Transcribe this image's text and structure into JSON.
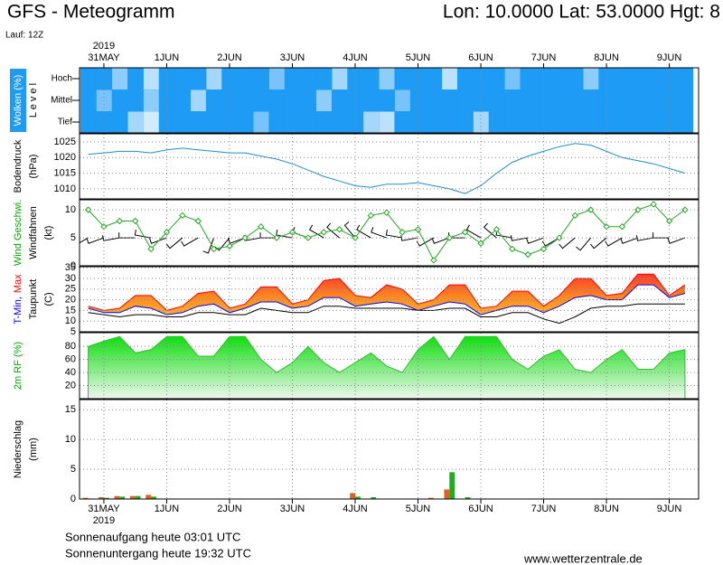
{
  "header": {
    "title": "GFS - Meteogramm",
    "location": "Lon: 10.0000 Lat: 53.0000 Hgt: 8",
    "run": "Lauf: 12Z"
  },
  "footer": {
    "sunrise": "Sonnenaufgang heute 03:01 UTC",
    "sunset": "Sonnenuntergang heute 19:32 UTC",
    "source": "www.wetterzentrale.de"
  },
  "time_axis": {
    "year": "2019",
    "xlim": [
      -9.3,
      227.2
    ],
    "xticks": [
      {
        "value": 0,
        "label": "31MAY"
      },
      {
        "value": 24,
        "label": "1JUN"
      },
      {
        "value": 48,
        "label": "2JUN"
      },
      {
        "value": 72,
        "label": "3JUN"
      },
      {
        "value": 96,
        "label": "4JUN"
      },
      {
        "value": 120,
        "label": "5JUN"
      },
      {
        "value": 144,
        "label": "6JUN"
      },
      {
        "value": 168,
        "label": "7JUN"
      },
      {
        "value": 192,
        "label": "8JUN"
      },
      {
        "value": 216,
        "label": "9JUN"
      }
    ],
    "x": [
      -6,
      0,
      6,
      12,
      18,
      24,
      30,
      36,
      42,
      48,
      54,
      60,
      66,
      72,
      78,
      84,
      90,
      96,
      102,
      108,
      114,
      120,
      126,
      132,
      138,
      144,
      150,
      156,
      162,
      168,
      174,
      180,
      186,
      192,
      198,
      204,
      210,
      216,
      222
    ],
    "grid": true
  },
  "chart_data": [
    {
      "type": "cloud",
      "color": "#1e9bf5",
      "label_background": "#1e9bf5",
      "ylabel": [
        [
          {
            "text": "Wolken (%)",
            "color": "#ffffff"
          }
        ],
        [
          {
            "text": "L e v e l",
            "color": "#000000"
          }
        ]
      ],
      "levels": [
        {
          "name": "Hoch",
          "values": [
            100,
            100,
            50,
            100,
            30,
            100,
            100,
            100,
            40,
            100,
            100,
            100,
            60,
            100,
            100,
            100,
            40,
            100,
            100,
            50,
            100,
            100,
            100,
            30,
            100,
            100,
            100,
            60,
            100,
            100,
            100,
            100,
            50,
            100,
            100,
            100,
            100,
            100,
            100
          ]
        },
        {
          "name": "Mittel",
          "values": [
            100,
            60,
            100,
            100,
            50,
            100,
            100,
            40,
            100,
            100,
            100,
            100,
            100,
            100,
            100,
            50,
            100,
            100,
            100,
            100,
            60,
            100,
            100,
            100,
            100,
            100,
            100,
            100,
            100,
            100,
            100,
            100,
            100,
            100,
            100,
            100,
            100,
            100,
            100
          ]
        },
        {
          "name": "Tief",
          "values": [
            100,
            100,
            100,
            40,
            20,
            100,
            100,
            100,
            100,
            100,
            100,
            60,
            100,
            100,
            100,
            100,
            100,
            100,
            40,
            30,
            100,
            100,
            100,
            100,
            100,
            40,
            100,
            100,
            100,
            100,
            100,
            100,
            100,
            100,
            100,
            100,
            100,
            100,
            100
          ]
        }
      ]
    },
    {
      "type": "line",
      "ylabel": [
        [
          {
            "text": "Bodendruck",
            "color": "#000000"
          }
        ],
        [
          {
            "text": "(hPa)",
            "color": "#000000"
          }
        ]
      ],
      "ylim": [
        1006.8,
        1027.6
      ],
      "yticks": [
        1010,
        1015,
        1020,
        1025
      ],
      "series": [
        {
          "color": "#1e8fd0",
          "values": [
            1021,
            1021.5,
            1022,
            1022,
            1021.5,
            1022.5,
            1023,
            1022.5,
            1022,
            1021.5,
            1021.5,
            1020.5,
            1019.5,
            1018,
            1016,
            1014,
            1012.5,
            1011,
            1010.5,
            1011.5,
            1011.5,
            1012,
            1011,
            1010,
            1008.5,
            1011,
            1015,
            1018.5,
            1020.5,
            1022,
            1023.5,
            1024.5,
            1024,
            1022,
            1020,
            1019,
            1018,
            1016.5,
            1015
          ]
        }
      ]
    },
    {
      "type": "wind",
      "ylabel": [
        [
          {
            "text": "Wind Geschwi.",
            "color": "#00aa00"
          }
        ],
        [
          {
            "text": "Windfahnen",
            "color": "#000000"
          }
        ],
        [
          {
            "text": "(kt)",
            "color": "#000000"
          }
        ]
      ],
      "ylim": [
        0,
        11.8
      ],
      "yticks": [
        0,
        5,
        10
      ],
      "series": [
        {
          "color": "#22aa22",
          "values": [
            10,
            7,
            8,
            8,
            3,
            6,
            9,
            8,
            3,
            3.5,
            5,
            7,
            5,
            6,
            5,
            6,
            6.5,
            5,
            9,
            9.5,
            6,
            6.5,
            1,
            5,
            6,
            4,
            6.5,
            3,
            2,
            3,
            5,
            9,
            10,
            7,
            7,
            10,
            11,
            8,
            10
          ]
        }
      ],
      "direction": [
        240,
        250,
        260,
        270,
        280,
        250,
        230,
        240,
        200,
        220,
        250,
        260,
        270,
        280,
        290,
        300,
        310,
        320,
        300,
        290,
        280,
        260,
        240,
        250,
        270,
        300,
        310,
        280,
        260,
        250,
        240,
        230,
        220,
        230,
        240,
        250,
        260,
        270,
        250
      ],
      "barb_color": "#000000"
    },
    {
      "type": "temperature",
      "ylabel": [
        [
          {
            "text": "T-Min,",
            "color": "#0000ff"
          },
          {
            "text": "Max",
            "color": "#ff0000"
          }
        ],
        [
          {
            "text": "Taupunkt",
            "color": "#000000"
          }
        ],
        [
          {
            "text": "(C)",
            "color": "#000000"
          }
        ]
      ],
      "ylim": [
        5,
        35.5
      ],
      "yticks": [
        5,
        10,
        15,
        20,
        25,
        30,
        35
      ],
      "series": [
        {
          "color": "#ff0000",
          "values": [
            17,
            15,
            16,
            22,
            22,
            15,
            17,
            23,
            24,
            16,
            18,
            26,
            26,
            18,
            20,
            29,
            30,
            22,
            21,
            27,
            25,
            18,
            20,
            27,
            27,
            16,
            17,
            24,
            24,
            17,
            22,
            30,
            30,
            22,
            23,
            32,
            32,
            22,
            27
          ]
        },
        {
          "color": "#0000ff",
          "values": [
            16,
            14,
            14,
            17,
            16,
            13,
            14,
            17,
            18,
            14,
            16,
            19,
            19,
            16,
            17,
            21,
            21,
            17,
            18,
            19,
            18,
            15,
            17,
            19,
            18,
            13,
            15,
            17,
            17,
            14,
            17,
            21,
            22,
            20,
            20,
            27,
            27,
            21,
            23
          ]
        },
        {
          "color": "#000000",
          "values": [
            14,
            13,
            12,
            13,
            13,
            12,
            12,
            14,
            14,
            13,
            13,
            16,
            15,
            14,
            14,
            17,
            17,
            16,
            16,
            16,
            16,
            15,
            15,
            16,
            16,
            12,
            12,
            14,
            14,
            11,
            9,
            12,
            16,
            17,
            17,
            18,
            18,
            18,
            18
          ]
        }
      ],
      "fill_colors": [
        "#ff2030",
        "#ff9020",
        "#ffd040"
      ]
    },
    {
      "type": "area",
      "ylabel": [
        [
          {
            "text": "2m RF (%)",
            "color": "#00aa00"
          }
        ]
      ],
      "ylim": [
        0,
        101
      ],
      "yticks": [
        20,
        40,
        60,
        80
      ],
      "series": [
        {
          "color": "#33bb33",
          "values": [
            80,
            88,
            95,
            70,
            75,
            95,
            95,
            65,
            65,
            95,
            95,
            60,
            40,
            55,
            80,
            55,
            40,
            55,
            70,
            50,
            40,
            75,
            95,
            60,
            95,
            95,
            95,
            60,
            45,
            65,
            75,
            45,
            40,
            60,
            75,
            45,
            45,
            70,
            75
          ]
        }
      ],
      "fill_colors": [
        "#00dd00",
        "#eef8ee"
      ]
    },
    {
      "type": "bar",
      "ylabel": [
        [
          {
            "text": "Niederschlag",
            "color": "#000000"
          }
        ],
        [
          {
            "text": "(mm)",
            "color": "#000000"
          }
        ]
      ],
      "ylim": [
        0,
        16.7
      ],
      "yticks": [
        0,
        5,
        10,
        15
      ],
      "series": [
        {
          "color": "#e06020",
          "values": [
            0.2,
            0.3,
            0.5,
            0.5,
            0.7,
            0,
            0,
            0,
            0,
            0,
            0,
            0,
            0,
            0,
            0,
            0,
            0,
            1.0,
            0,
            0,
            0,
            0,
            0.2,
            1.6,
            0,
            0,
            0,
            0,
            0,
            0,
            0,
            0,
            0,
            0,
            0,
            0,
            0,
            0,
            0
          ]
        },
        {
          "color": "#22aa22",
          "values": [
            0,
            0.2,
            0.4,
            0.5,
            0.4,
            0,
            0,
            0,
            0,
            0,
            0,
            0,
            0,
            0,
            0,
            0,
            0,
            0.4,
            0.3,
            0,
            0,
            0,
            0,
            4.5,
            0.3,
            0,
            0,
            0,
            0,
            0,
            0,
            0,
            0,
            0,
            0,
            0,
            0,
            0,
            0
          ]
        }
      ]
    }
  ]
}
